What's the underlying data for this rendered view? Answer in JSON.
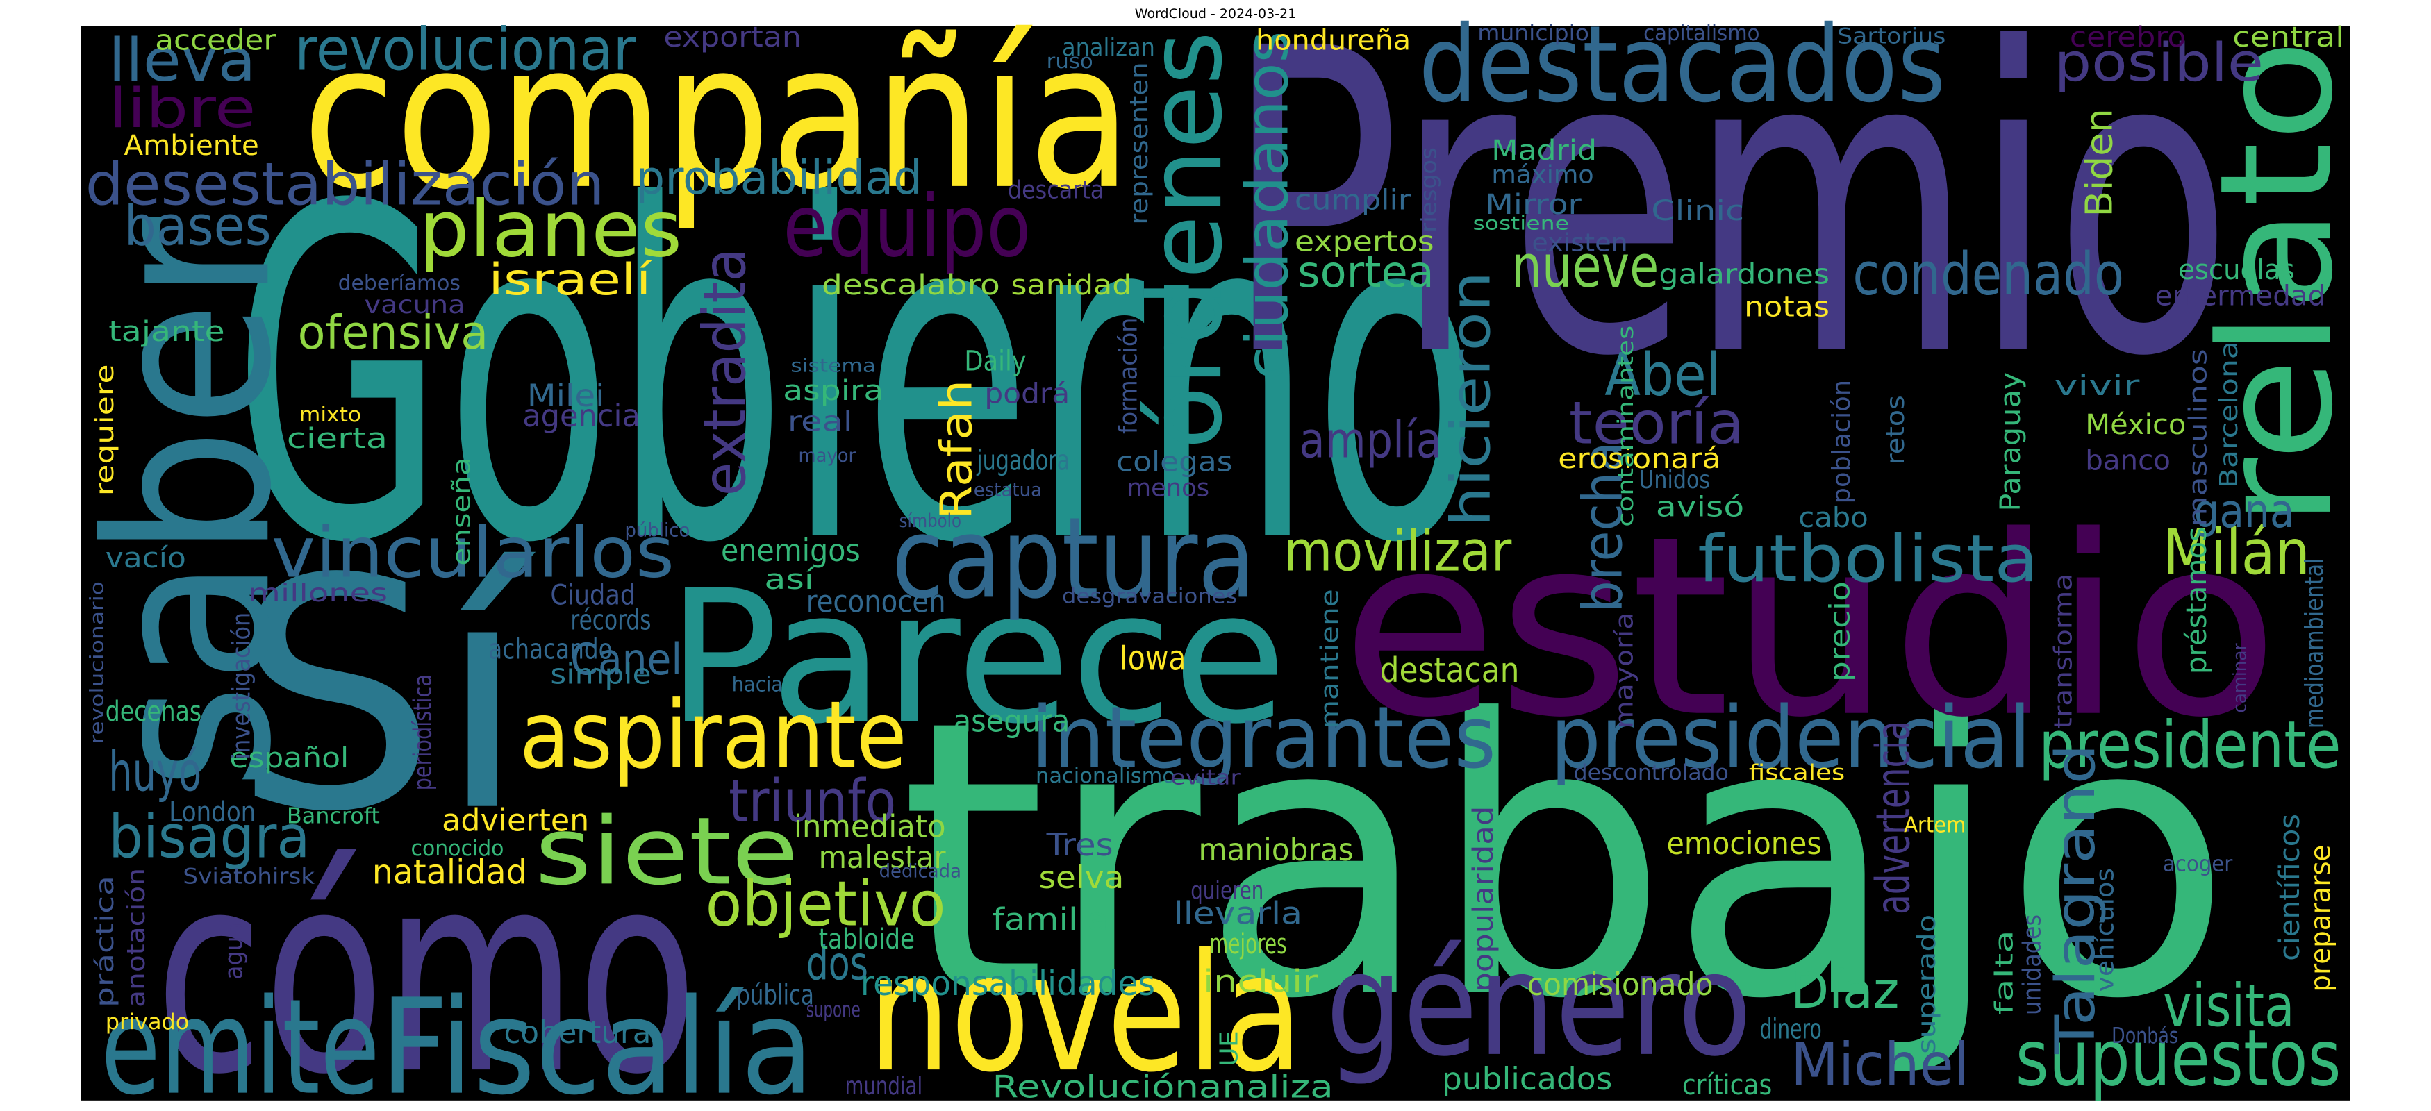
{
  "chart_data": {
    "type": "wordcloud",
    "title": "WordCloud - 2024-03-21",
    "background": "#000000",
    "words": [
      {
        "text": "Gobierno",
        "color": "#21918c"
      },
      {
        "text": "trabajo",
        "color": "#35b779"
      },
      {
        "text": "Premio",
        "color": "#443983"
      },
      {
        "text": "Sí",
        "color": "#2a788e"
      },
      {
        "text": "estudio",
        "color": "#440154"
      },
      {
        "text": "cómo",
        "color": "#443983"
      },
      {
        "text": "compañía",
        "color": "#fde725"
      },
      {
        "text": "saber",
        "color": "#2a788e"
      },
      {
        "text": "relato",
        "color": "#35b779"
      },
      {
        "text": "Parece",
        "color": "#21918c"
      },
      {
        "text": "novela",
        "color": "#fde725"
      },
      {
        "text": "género",
        "color": "#443983"
      },
      {
        "text": "emite",
        "color": "#2a788e"
      },
      {
        "text": "Fiscalía",
        "color": "#2a788e"
      },
      {
        "text": "destacados",
        "color": "#31688e"
      },
      {
        "text": "captura",
        "color": "#31688e"
      },
      {
        "text": "aspirante",
        "color": "#fde725"
      },
      {
        "text": "siete",
        "color": "#7ad151"
      },
      {
        "text": "integrantes",
        "color": "#31688e"
      },
      {
        "text": "presidencial",
        "color": "#31688e"
      },
      {
        "text": "supuestos",
        "color": "#35b779"
      },
      {
        "text": "órdenes",
        "color": "#21918c"
      },
      {
        "text": "equipo",
        "color": "#440154"
      },
      {
        "text": "planes",
        "color": "#a0da39"
      },
      {
        "text": "vincularlos",
        "color": "#31688e"
      },
      {
        "text": "movilizar",
        "color": "#a0da39"
      },
      {
        "text": "futbolista",
        "color": "#2a788e"
      },
      {
        "text": "presidente",
        "color": "#35b779"
      },
      {
        "text": "Milán",
        "color": "#a0da39"
      },
      {
        "text": "desestabilización",
        "color": "#3b528b"
      },
      {
        "text": "revolucionar",
        "color": "#2a788e"
      },
      {
        "text": "lleva",
        "color": "#31688e"
      },
      {
        "text": "libre",
        "color": "#440154"
      },
      {
        "text": "bases",
        "color": "#31688e"
      },
      {
        "text": "objetivo",
        "color": "#a0da39"
      },
      {
        "text": "triunfo",
        "color": "#443983"
      },
      {
        "text": "bisagra",
        "color": "#2a788e"
      },
      {
        "text": "huyó",
        "color": "#31688e"
      },
      {
        "text": "visita",
        "color": "#35b779"
      },
      {
        "text": "Michel",
        "color": "#3b528b"
      },
      {
        "text": "condenado",
        "color": "#31688e"
      },
      {
        "text": "posible",
        "color": "#443983"
      },
      {
        "text": "nueve",
        "color": "#7ad151"
      },
      {
        "text": "Abel",
        "color": "#2a788e"
      },
      {
        "text": "teoría",
        "color": "#443983"
      },
      {
        "text": "ciudadanos",
        "color": "#21918c"
      },
      {
        "text": "extradita",
        "color": "#443983"
      },
      {
        "text": "hicieron",
        "color": "#2a788e"
      },
      {
        "text": "Talagrand",
        "color": "#31688e"
      },
      {
        "text": "brecha",
        "color": "#31688e"
      },
      {
        "text": "amplía",
        "color": "#443983"
      },
      {
        "text": "ofensiva",
        "color": "#90d743"
      },
      {
        "text": "israelí",
        "color": "#fde725"
      },
      {
        "text": "probabilidad",
        "color": "#2a788e"
      },
      {
        "text": "sortea",
        "color": "#35b779"
      },
      {
        "text": "gana",
        "color": "#31688e"
      },
      {
        "text": "Díaz",
        "color": "#35b779"
      },
      {
        "text": "dos",
        "color": "#2a788e"
      },
      {
        "text": "natalidad",
        "color": "#fde725"
      },
      {
        "text": "responsabilidades",
        "color": "#21918c"
      },
      {
        "text": "advertencia",
        "color": "#443983"
      },
      {
        "text": "Rafah",
        "color": "#fde725"
      },
      {
        "text": "Biden",
        "color": "#90d743"
      },
      {
        "text": "Canel",
        "color": "#31688e"
      },
      {
        "text": "emociones",
        "color": "#c2df23"
      },
      {
        "text": "comisionado",
        "color": "#90d743"
      },
      {
        "text": "maniobras",
        "color": "#90d743"
      },
      {
        "text": "agencia",
        "color": "#443983"
      },
      {
        "text": "Milei",
        "color": "#31688e"
      },
      {
        "text": "destacan",
        "color": "#a0da39"
      },
      {
        "text": "Iowa",
        "color": "#fde725"
      },
      {
        "text": "reconocen",
        "color": "#31688e"
      },
      {
        "text": "enemigos",
        "color": "#35b779"
      },
      {
        "text": "cobertura",
        "color": "#2a788e"
      },
      {
        "text": "Revoluciónanaliza",
        "color": "#35b779"
      },
      {
        "text": "publicados",
        "color": "#35b779"
      },
      {
        "text": "críticas",
        "color": "#35b779"
      },
      {
        "text": "mejores",
        "color": "#90d743"
      },
      {
        "text": "incluir",
        "color": "#90d743"
      },
      {
        "text": "llevarla",
        "color": "#31688e"
      },
      {
        "text": "familia",
        "color": "#35b779"
      },
      {
        "text": "selva",
        "color": "#a0da39"
      },
      {
        "text": "Tres",
        "color": "#3b528b"
      },
      {
        "text": "malestar",
        "color": "#90d743"
      },
      {
        "text": "inmediato",
        "color": "#90d743"
      },
      {
        "text": "asegura",
        "color": "#35b779"
      },
      {
        "text": "tabloide",
        "color": "#35b779"
      },
      {
        "text": "pública",
        "color": "#31688e"
      },
      {
        "text": "advierten",
        "color": "#fde725"
      },
      {
        "text": "London",
        "color": "#31688e"
      },
      {
        "text": "español",
        "color": "#35b779"
      },
      {
        "text": "decenas",
        "color": "#35b779"
      },
      {
        "text": "simple",
        "color": "#2a788e"
      },
      {
        "text": "achacando",
        "color": "#31688e"
      },
      {
        "text": "récords",
        "color": "#31688e"
      },
      {
        "text": "Ciudad",
        "color": "#3b528b"
      },
      {
        "text": "tajante",
        "color": "#35b779"
      },
      {
        "text": "vacuna",
        "color": "#443983"
      },
      {
        "text": "cierta",
        "color": "#35b779"
      },
      {
        "text": "Daily",
        "color": "#35b779"
      },
      {
        "text": "sanidad",
        "color": "#a0da39"
      },
      {
        "text": "descalabro",
        "color": "#90d743"
      },
      {
        "text": "expertos",
        "color": "#90d743"
      },
      {
        "text": "cumplir",
        "color": "#31688e"
      },
      {
        "text": "Mirror",
        "color": "#31688e"
      },
      {
        "text": "Clinic",
        "color": "#31688e"
      },
      {
        "text": "galardones",
        "color": "#35b779"
      },
      {
        "text": "notas",
        "color": "#fde725"
      },
      {
        "text": "escuelas",
        "color": "#35b779"
      },
      {
        "text": "enfermedad",
        "color": "#443983"
      },
      {
        "text": "vivir",
        "color": "#2a788e"
      },
      {
        "text": "México",
        "color": "#90d743"
      },
      {
        "text": "banco",
        "color": "#443983"
      },
      {
        "text": "avisó",
        "color": "#35b779"
      },
      {
        "text": "cabo",
        "color": "#2a788e"
      },
      {
        "text": "erosionará",
        "color": "#fde725"
      },
      {
        "text": "Madrid",
        "color": "#35b779"
      },
      {
        "text": "máximo",
        "color": "#31688e"
      },
      {
        "text": "hondureña",
        "color": "#fde725"
      },
      {
        "text": "central",
        "color": "#90d743"
      },
      {
        "text": "Ambiente",
        "color": "#fde725"
      },
      {
        "text": "acceder",
        "color": "#90d743"
      },
      {
        "text": "analizan",
        "color": "#2a788e"
      },
      {
        "text": "exportan",
        "color": "#443983"
      },
      {
        "text": "descarta",
        "color": "#443983"
      },
      {
        "text": "aspira",
        "color": "#35b779"
      },
      {
        "text": "real",
        "color": "#3b528b"
      },
      {
        "text": "podrá",
        "color": "#443983"
      },
      {
        "text": "jugadora",
        "color": "#2a788e"
      },
      {
        "text": "colegas",
        "color": "#31688e"
      },
      {
        "text": "menos",
        "color": "#443983"
      },
      {
        "text": "así",
        "color": "#35b779"
      },
      {
        "text": "requiere",
        "color": "#fde725"
      },
      {
        "text": "enseña",
        "color": "#35b779"
      },
      {
        "text": "vacío",
        "color": "#2a788e"
      },
      {
        "text": "Sartorius",
        "color": "#31688e"
      },
      {
        "text": "capitalismo",
        "color": "#3b528b"
      },
      {
        "text": "municipio",
        "color": "#3b528b"
      },
      {
        "text": "cerebro",
        "color": "#440154"
      },
      {
        "text": "dinero",
        "color": "#2a788e"
      },
      {
        "text": "superado",
        "color": "#2a788e"
      },
      {
        "text": "falta",
        "color": "#35b779"
      },
      {
        "text": "prepararse",
        "color": "#fde725"
      },
      {
        "text": "préstamos",
        "color": "#35b779"
      },
      {
        "text": "Barcelona",
        "color": "#2a788e"
      },
      {
        "text": "masculinos",
        "color": "#3b528b"
      },
      {
        "text": "Paraguay",
        "color": "#35b779"
      },
      {
        "text": "Unidos",
        "color": "#31688e"
      },
      {
        "text": "contaminantes",
        "color": "#35b779"
      },
      {
        "text": "precio",
        "color": "#35b779"
      },
      {
        "text": "mayoría",
        "color": "#443983"
      },
      {
        "text": "popularidad",
        "color": "#443983"
      },
      {
        "text": "mantiene",
        "color": "#2a788e"
      },
      {
        "text": "nacionalismo",
        "color": "#2a788e"
      },
      {
        "text": "fiscales",
        "color": "#fde725"
      },
      {
        "text": "descontrolado",
        "color": "#3b528b"
      },
      {
        "text": "Artem",
        "color": "#fde725"
      },
      {
        "text": "acoger",
        "color": "#3b528b"
      },
      {
        "text": "Donbás",
        "color": "#3b528b"
      },
      {
        "text": "mundial",
        "color": "#443983"
      },
      {
        "text": "UE",
        "color": "#35b779"
      },
      {
        "text": "agua",
        "color": "#443983"
      },
      {
        "text": "privado",
        "color": "#fde725"
      },
      {
        "text": "práctica",
        "color": "#3b528b"
      },
      {
        "text": "anotación",
        "color": "#443983"
      },
      {
        "text": "Sviatohirsk",
        "color": "#3b528b"
      },
      {
        "text": "Bancroft",
        "color": "#35b779"
      },
      {
        "text": "conocido",
        "color": "#35b779"
      },
      {
        "text": "supone",
        "color": "#443983"
      },
      {
        "text": "quieren",
        "color": "#443983"
      },
      {
        "text": "evitar",
        "color": "#443983"
      },
      {
        "text": "hacia",
        "color": "#31688e"
      },
      {
        "text": "desgravaciones",
        "color": "#3b528b"
      },
      {
        "text": "símbolo",
        "color": "#3b528b"
      },
      {
        "text": "estatua",
        "color": "#3b528b"
      },
      {
        "text": "mayor",
        "color": "#3b528b"
      },
      {
        "text": "dedicada",
        "color": "#3b528b"
      },
      {
        "text": "sistema",
        "color": "#31688e"
      },
      {
        "text": "deberíamos",
        "color": "#3b528b"
      },
      {
        "text": "mixto",
        "color": "#fde725"
      },
      {
        "text": "público",
        "color": "#3b528b"
      },
      {
        "text": "millones",
        "color": "#443983"
      },
      {
        "text": "ruso",
        "color": "#31688e"
      },
      {
        "text": "sostiene",
        "color": "#35b779"
      },
      {
        "text": "existen",
        "color": "#3b528b"
      },
      {
        "text": "población",
        "color": "#3b528b"
      },
      {
        "text": "retos",
        "color": "#31688e"
      },
      {
        "text": "formación",
        "color": "#3b528b"
      },
      {
        "text": "representen",
        "color": "#31688e"
      },
      {
        "text": "riesgos",
        "color": "#3b528b"
      },
      {
        "text": "revolucionario",
        "color": "#3b528b"
      },
      {
        "text": "investigación",
        "color": "#3b528b"
      },
      {
        "text": "periodística",
        "color": "#443983"
      },
      {
        "text": "transforma",
        "color": "#443983"
      },
      {
        "text": "medioambiental",
        "color": "#31688e"
      },
      {
        "text": "caminar",
        "color": "#443983"
      },
      {
        "text": "científicos",
        "color": "#2a788e"
      },
      {
        "text": "vehículos",
        "color": "#31688e"
      },
      {
        "text": "unidades",
        "color": "#3b528b"
      }
    ]
  }
}
